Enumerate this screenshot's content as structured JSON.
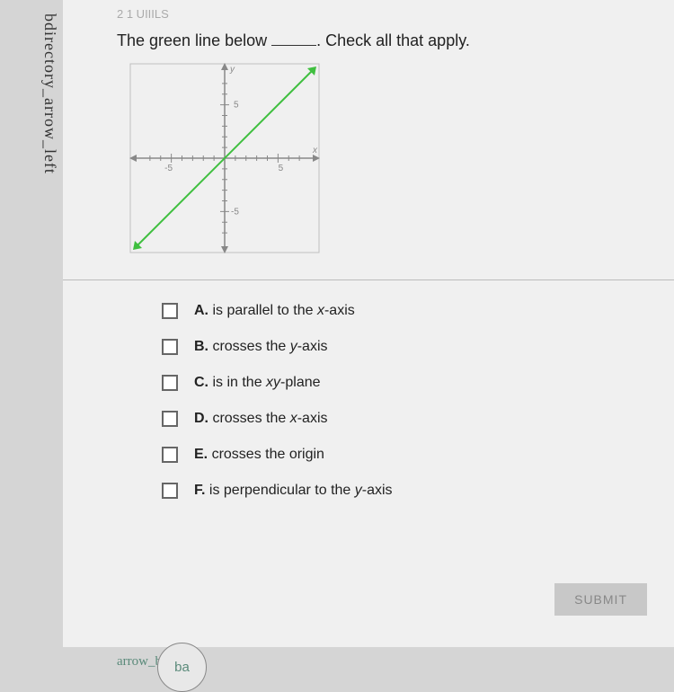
{
  "sidebar_text": "bdirectory_arrow_left",
  "faded_header": "2 1 UIIILS",
  "question_prefix": "The green line below ",
  "question_suffix": ". Check all that apply.",
  "graph": {
    "size": 220,
    "box_stroke": "#bfbfbf",
    "axis_stroke": "#888888",
    "line_color": "#3fbf3f",
    "label_color": "#888888",
    "x_label": "x",
    "y_label": "y",
    "ticks": {
      "neg": "-5",
      "pos": "5"
    }
  },
  "options": [
    {
      "letter": "A.",
      "text_pre": "is parallel to the ",
      "italic": "x",
      "text_post": "-axis"
    },
    {
      "letter": "B.",
      "text_pre": "crosses the ",
      "italic": "y",
      "text_post": "-axis"
    },
    {
      "letter": "C.",
      "text_pre": "is in the ",
      "italic": "xy",
      "text_post": "-plane"
    },
    {
      "letter": "D.",
      "text_pre": "crosses the ",
      "italic": "x",
      "text_post": "-axis"
    },
    {
      "letter": "E.",
      "text_pre": "crosses the origin",
      "italic": "",
      "text_post": ""
    },
    {
      "letter": "F.",
      "text_pre": "is perpendicular to the ",
      "italic": "y",
      "text_post": "-axis"
    }
  ],
  "submit_label": "SUBMIT",
  "bottom_text": "arrow_back",
  "loupe_text": "ba"
}
